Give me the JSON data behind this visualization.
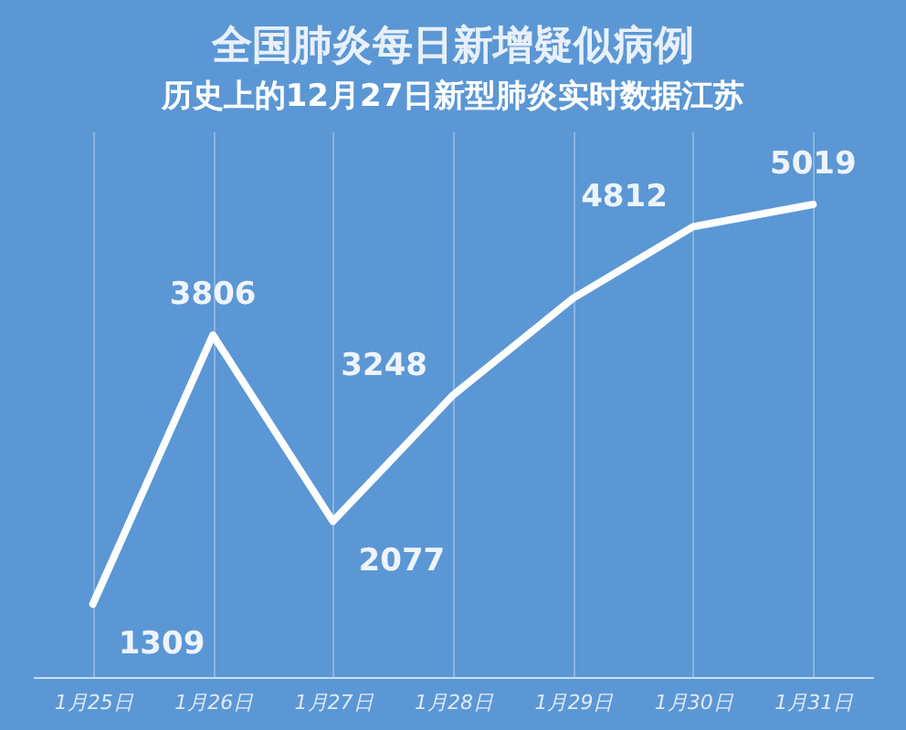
{
  "chart_data": {
    "type": "line",
    "title": "全国肺炎每日新增疑似病例",
    "subtitle": "历史上的12月27日新型肺炎实时数据江苏",
    "categories": [
      "1月25日",
      "1月26日",
      "1月27日",
      "1月28日",
      "1月29日",
      "1月30日",
      "1月31日"
    ],
    "series": [
      {
        "color": "#ffffff",
        "values": [
          1309,
          3806,
          2077,
          3248,
          4148,
          4812,
          5019
        ],
        "value_labels": [
          "1309",
          "3806",
          "2077",
          "3248",
          null,
          "4812",
          "5019"
        ]
      }
    ],
    "grid": "x",
    "marker": "none",
    "line_style": "solid",
    "legend": false,
    "tick_labels": "x"
  }
}
